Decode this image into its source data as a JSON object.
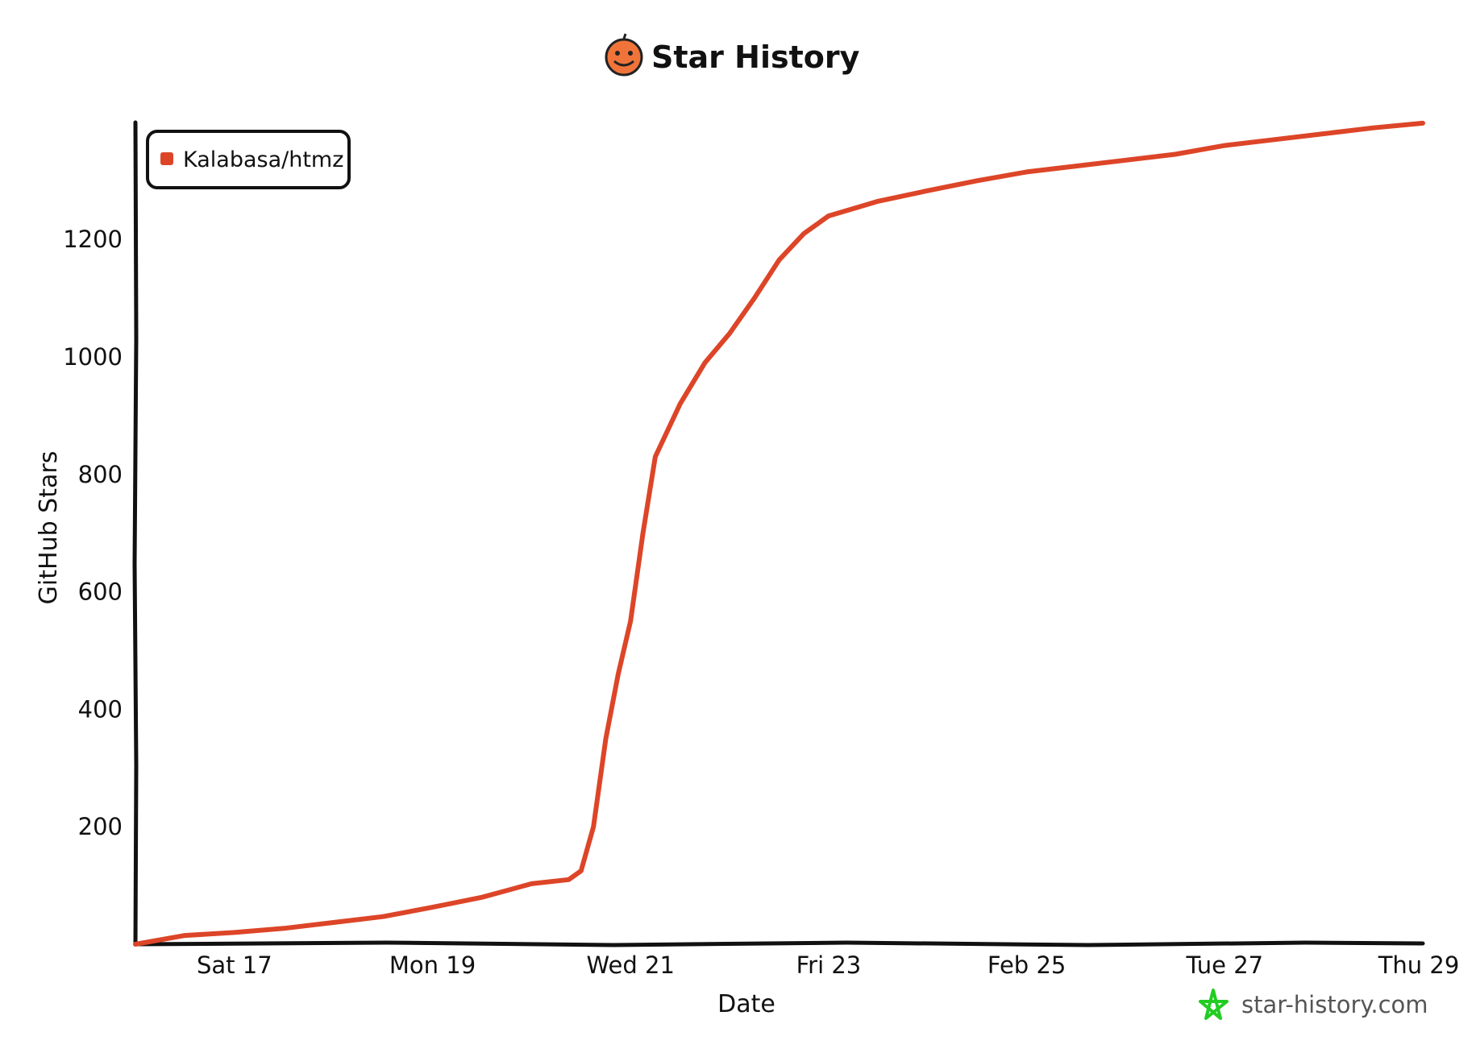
{
  "title": "Star History",
  "watermark": "star-history.com",
  "colors": {
    "series": "#dd4528",
    "axis": "#111111",
    "logo_orange": "#f0743a",
    "watermark_star": "#22cc22"
  },
  "icons": {
    "title_icon": "jack-o-lantern-icon",
    "watermark_icon": "star-outline-icon"
  },
  "chart_data": {
    "type": "line",
    "title": "Star History",
    "xlabel": "Date",
    "ylabel": "GitHub Stars",
    "x_tick_labels": [
      "Sat 17",
      "Mon 19",
      "Wed 21",
      "Fri 23",
      "Feb 25",
      "Tue 27",
      "Thu 29"
    ],
    "y_ticks": [
      200,
      400,
      600,
      800,
      1000,
      1200
    ],
    "ylim": [
      0,
      1400
    ],
    "legend": {
      "position": "top-left"
    },
    "series": [
      {
        "name": "Kalabasa/htmz",
        "x": [
          "2024-02-16",
          "2024-02-16 12:00",
          "2024-02-17",
          "2024-02-17 12:00",
          "2024-02-18",
          "2024-02-18 12:00",
          "2024-02-19",
          "2024-02-19 12:00",
          "2024-02-20",
          "2024-02-20 09:00",
          "2024-02-20 12:00",
          "2024-02-20 15:00",
          "2024-02-20 18:00",
          "2024-02-20 21:00",
          "2024-02-21",
          "2024-02-21 03:00",
          "2024-02-21 06:00",
          "2024-02-21 12:00",
          "2024-02-21 18:00",
          "2024-02-22",
          "2024-02-22 06:00",
          "2024-02-22 12:00",
          "2024-02-22 18:00",
          "2024-02-23",
          "2024-02-23 12:00",
          "2024-02-24",
          "2024-02-24 12:00",
          "2024-02-25",
          "2024-02-25 12:00",
          "2024-02-26",
          "2024-02-26 12:00",
          "2024-02-27",
          "2024-02-27 12:00",
          "2024-02-28",
          "2024-02-28 12:00",
          "2024-02-29"
        ],
        "values": [
          0,
          15,
          20,
          27,
          37,
          47,
          63,
          80,
          103,
          110,
          125,
          200,
          350,
          460,
          550,
          700,
          830,
          920,
          990,
          1040,
          1100,
          1165,
          1210,
          1240,
          1265,
          1283,
          1300,
          1315,
          1325,
          1335,
          1345,
          1360,
          1370,
          1380,
          1390,
          1398
        ]
      }
    ]
  }
}
